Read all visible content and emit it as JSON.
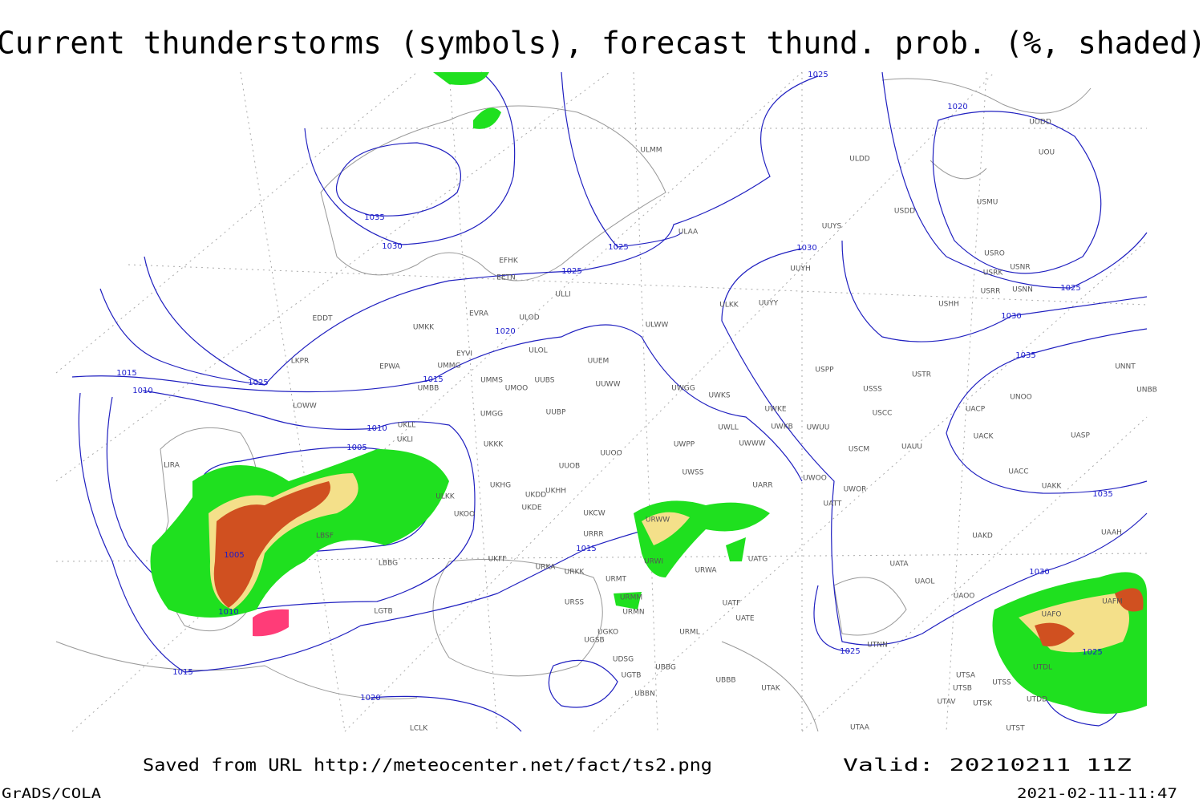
{
  "title": "Current thunderstorms (symbols), forecast thund. prob. (%, shaded)",
  "footer": {
    "source": "Saved from URL http://meteocenter.net/fact/ts2.png",
    "valid": "Valid: 20210211 11Z",
    "software": "GrADS/COLA",
    "timestamp": "2021-02-11-11:47"
  },
  "isobar_labels": [
    "1035",
    "1030",
    "1025",
    "1025",
    "1025",
    "1020",
    "1030",
    "1025",
    "1030",
    "1035",
    "1035",
    "1030",
    "1025",
    "1025",
    "1020",
    "1015",
    "1025",
    "1015",
    "1010",
    "1010",
    "1005",
    "1005",
    "1015",
    "1010",
    "1015",
    "1020"
  ],
  "stations": [
    "ULMM",
    "ULDD",
    "UODD",
    "UOU",
    "USMU",
    "USDD",
    "UUYS",
    "ULAA",
    "USRO",
    "USRK",
    "USNR",
    "USRR",
    "USNN",
    "UUYH",
    "EFHK",
    "EETN",
    "ULLI",
    "ULKK",
    "UUYY",
    "USHH",
    "EVRA",
    "ULOD",
    "EDDT",
    "UMKK",
    "ULWW",
    "EYVI",
    "ULOL",
    "UUEM",
    "LKPR",
    "EPWA",
    "UMMG",
    "USPP",
    "USTR",
    "UMMS",
    "UUBS",
    "UMOO",
    "UUWW",
    "UMBB",
    "UWGG",
    "UWKS",
    "USSS",
    "UNOO",
    "UNNT",
    "UNBB",
    "LOWW",
    "UWKE",
    "UACP",
    "USCC",
    "UMGG",
    "UUBP",
    "UKLL",
    "UKLI",
    "UWLL",
    "UWKB",
    "UWUU",
    "UACK",
    "UASP",
    "UKKK",
    "UWPP",
    "UWWW",
    "USCM",
    "UAUU",
    "LIRA",
    "UUOO",
    "UUOB",
    "UWSS",
    "UACC",
    "UWOO",
    "UKHG",
    "UKDD",
    "UKHH",
    "UAKK",
    "UARR",
    "UWOR",
    "ULKK",
    "UKOO",
    "UKDE",
    "UKCW",
    "UATT",
    "URWW",
    "UAKD",
    "UAAH",
    "URRR",
    "LBSF",
    "UKFF",
    "UATG",
    "URWI",
    "URKA",
    "URKK",
    "UATA",
    "URWA",
    "URMT",
    "UAOL",
    "LBBG",
    "UAOO",
    "URSS",
    "URMM",
    "UATF",
    "URMN",
    "UATE",
    "UAFM",
    "UAFO",
    "LGTB",
    "UGSB",
    "UGKO",
    "URML",
    "UDSG",
    "UBBG",
    "UTDL",
    "UTSS",
    "UTSA",
    "UTSB",
    "UBBB",
    "UGTB",
    "UBBN",
    "UTAK",
    "UTAV",
    "UTSK",
    "UTDD",
    "UTST",
    "UTAA",
    "LCLK",
    "UTNN"
  ]
}
